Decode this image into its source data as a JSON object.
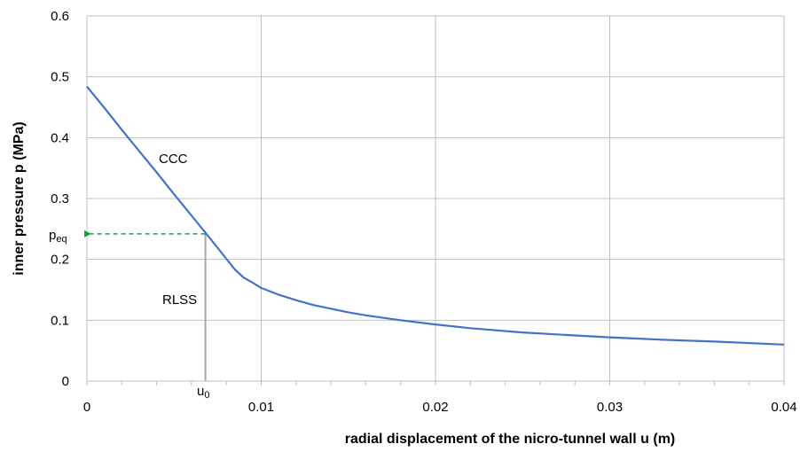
{
  "chart_data": {
    "type": "line",
    "xlabel": "radial displacement of the nicro-tunnel wall u (m)",
    "ylabel": "inner pressure p (MPa)",
    "xlim": [
      0,
      0.04
    ],
    "ylim": [
      0,
      0.6
    ],
    "x_ticks": [
      "0",
      "0.01",
      "0.02",
      "0.03",
      "0.04"
    ],
    "y_ticks": [
      "0",
      "0.1",
      "0.2",
      "0.3",
      "0.4",
      "0.5",
      "0.6"
    ],
    "grid": true,
    "series": [
      {
        "name": "CCC",
        "color": "#4472C4",
        "x": [
          0,
          0.001,
          0.002,
          0.003,
          0.004,
          0.005,
          0.006,
          0.007,
          0.008,
          0.0085,
          0.009,
          0.0095,
          0.01,
          0.011,
          0.012,
          0.013,
          0.014,
          0.015,
          0.016,
          0.018,
          0.02,
          0.022,
          0.025,
          0.028,
          0.03,
          0.033,
          0.036,
          0.04
        ],
        "y": [
          0.484,
          0.449,
          0.413,
          0.378,
          0.343,
          0.307,
          0.272,
          0.237,
          0.201,
          0.183,
          0.17,
          0.162,
          0.153,
          0.142,
          0.133,
          0.125,
          0.119,
          0.113,
          0.108,
          0.1,
          0.093,
          0.087,
          0.08,
          0.075,
          0.072,
          0.068,
          0.065,
          0.06
        ]
      }
    ],
    "rlss": {
      "name": "RLSS",
      "u0": 0.0068,
      "p_eq": 0.242,
      "color": "#A6A6A6"
    },
    "peq_arrow_color": "#1AA043",
    "annotations": {
      "ccc": "CCC",
      "rlss": "RLSS",
      "u0": "u",
      "u0_sub": "0",
      "peq": "p",
      "peq_sub": "eq"
    }
  }
}
